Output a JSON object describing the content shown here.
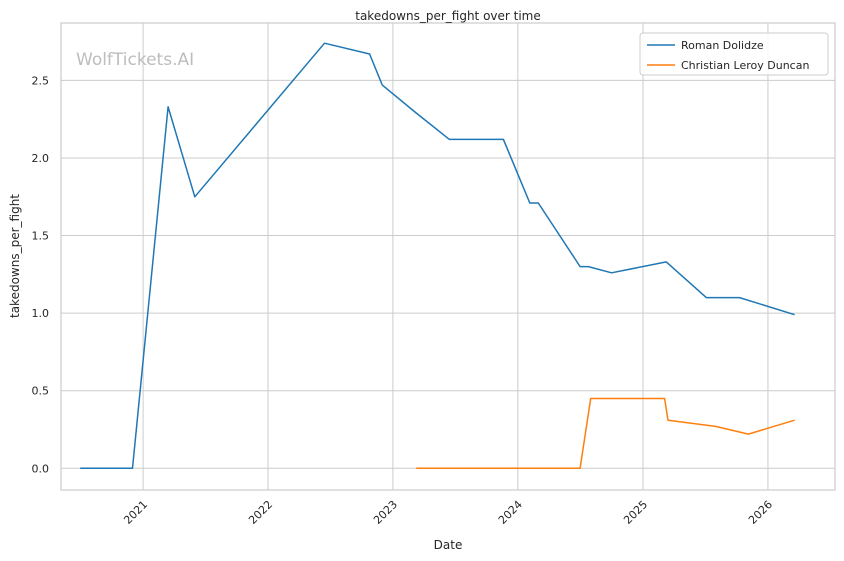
{
  "chart_data": {
    "type": "line",
    "title": "takedowns_per_fight over time",
    "xlabel": "Date",
    "ylabel": "takedowns_per_fight",
    "watermark": "WolfTickets.AI",
    "x_ticks": [
      "2021",
      "2022",
      "2023",
      "2024",
      "2025",
      "2026"
    ],
    "y_ticks": [
      "0.0",
      "0.5",
      "1.0",
      "1.5",
      "2.0",
      "2.5"
    ],
    "xlim": [
      "2020-05-06",
      "2026-07-16"
    ],
    "ylim": [
      -0.14,
      2.87
    ],
    "grid": true,
    "legend_position": "top-right",
    "series": [
      {
        "name": "Roman Dolidze",
        "color": "#1f77b4",
        "points": [
          [
            "2020-07-01",
            0.0
          ],
          [
            "2020-12-01",
            0.0
          ],
          [
            "2021-03-15",
            2.33
          ],
          [
            "2021-06-01",
            1.75
          ],
          [
            "2022-06-15",
            2.74
          ],
          [
            "2022-10-25",
            2.67
          ],
          [
            "2022-12-01",
            2.47
          ],
          [
            "2023-03-10",
            2.29
          ],
          [
            "2023-06-15",
            2.12
          ],
          [
            "2023-11-20",
            2.12
          ],
          [
            "2024-02-05",
            1.71
          ],
          [
            "2024-03-01",
            1.71
          ],
          [
            "2024-07-01",
            1.3
          ],
          [
            "2024-07-25",
            1.3
          ],
          [
            "2024-10-01",
            1.26
          ],
          [
            "2025-03-10",
            1.33
          ],
          [
            "2025-07-05",
            1.1
          ],
          [
            "2025-10-10",
            1.1
          ],
          [
            "2026-03-20",
            0.99
          ]
        ]
      },
      {
        "name": "Christian Leroy Duncan",
        "color": "#ff7f0e",
        "points": [
          [
            "2023-03-10",
            0.0
          ],
          [
            "2024-07-01",
            0.0
          ],
          [
            "2024-08-01",
            0.45
          ],
          [
            "2025-03-05",
            0.45
          ],
          [
            "2025-03-15",
            0.31
          ],
          [
            "2025-08-01",
            0.27
          ],
          [
            "2025-11-05",
            0.22
          ],
          [
            "2026-03-20",
            0.31
          ]
        ]
      }
    ]
  }
}
